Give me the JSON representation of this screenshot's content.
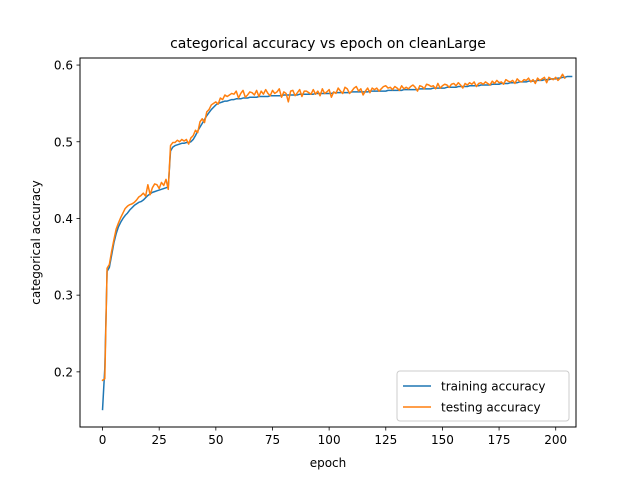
{
  "chart_data": {
    "type": "line",
    "title": "categorical accuracy vs epoch on cleanLarge",
    "xlabel": "epoch",
    "ylabel": "categorical accuracy",
    "xlim": [
      -9.95,
      208.95
    ],
    "ylim": [
      0.1281,
      0.6092
    ],
    "xticks": [
      0,
      25,
      50,
      75,
      100,
      125,
      150,
      175,
      200
    ],
    "yticks": [
      0.2,
      0.3,
      0.4,
      0.5,
      0.6
    ],
    "ytick_labels": [
      "0.2",
      "0.3",
      "0.4",
      "0.5",
      "0.6"
    ],
    "grid": false,
    "legend": "lower-right",
    "x_start": 0,
    "x_step": 1,
    "series": [
      {
        "name": "training accuracy",
        "color": "#1f77b4",
        "values": [
          0.151,
          0.205,
          0.331,
          0.336,
          0.352,
          0.368,
          0.38,
          0.389,
          0.395,
          0.4,
          0.404,
          0.407,
          0.411,
          0.414,
          0.417,
          0.419,
          0.421,
          0.422,
          0.424,
          0.427,
          0.43,
          0.432,
          0.434,
          0.435,
          0.436,
          0.437,
          0.438,
          0.439,
          0.44,
          0.441,
          0.488,
          0.493,
          0.495,
          0.496,
          0.497,
          0.498,
          0.498,
          0.499,
          0.499,
          0.5,
          0.503,
          0.508,
          0.514,
          0.519,
          0.524,
          0.529,
          0.534,
          0.538,
          0.542,
          0.545,
          0.548,
          0.55,
          0.551,
          0.552,
          0.553,
          0.553,
          0.554,
          0.555,
          0.555,
          0.556,
          0.556,
          0.556,
          0.557,
          0.557,
          0.557,
          0.558,
          0.558,
          0.558,
          0.558,
          0.559,
          0.559,
          0.559,
          0.559,
          0.559,
          0.56,
          0.56,
          0.56,
          0.56,
          0.56,
          0.56,
          0.561,
          0.561,
          0.561,
          0.561,
          0.561,
          0.561,
          0.561,
          0.562,
          0.562,
          0.562,
          0.562,
          0.562,
          0.562,
          0.562,
          0.563,
          0.563,
          0.563,
          0.563,
          0.563,
          0.563,
          0.563,
          0.563,
          0.564,
          0.564,
          0.564,
          0.564,
          0.564,
          0.564,
          0.564,
          0.564,
          0.565,
          0.565,
          0.565,
          0.565,
          0.565,
          0.565,
          0.565,
          0.565,
          0.566,
          0.566,
          0.566,
          0.566,
          0.566,
          0.566,
          0.566,
          0.566,
          0.567,
          0.567,
          0.567,
          0.567,
          0.567,
          0.567,
          0.567,
          0.568,
          0.568,
          0.568,
          0.568,
          0.568,
          0.568,
          0.568,
          0.569,
          0.569,
          0.569,
          0.569,
          0.569,
          0.569,
          0.57,
          0.57,
          0.57,
          0.57,
          0.57,
          0.57,
          0.571,
          0.571,
          0.571,
          0.571,
          0.571,
          0.572,
          0.572,
          0.572,
          0.572,
          0.572,
          0.573,
          0.573,
          0.573,
          0.573,
          0.573,
          0.574,
          0.574,
          0.574,
          0.574,
          0.574,
          0.575,
          0.575,
          0.575,
          0.575,
          0.576,
          0.576,
          0.576,
          0.576,
          0.577,
          0.577,
          0.577,
          0.577,
          0.578,
          0.578,
          0.578,
          0.578,
          0.579,
          0.579,
          0.579,
          0.579,
          0.58,
          0.58,
          0.58,
          0.581,
          0.581,
          0.581,
          0.582,
          0.582,
          0.582,
          0.583,
          0.583,
          0.584,
          0.584,
          0.585,
          0.585,
          0.585
        ]
      },
      {
        "name": "testing accuracy",
        "color": "#ff7f0e",
        "values": [
          0.189,
          0.191,
          0.335,
          0.34,
          0.357,
          0.372,
          0.386,
          0.394,
          0.401,
          0.407,
          0.413,
          0.416,
          0.418,
          0.419,
          0.421,
          0.424,
          0.428,
          0.43,
          0.433,
          0.429,
          0.444,
          0.431,
          0.44,
          0.445,
          0.444,
          0.439,
          0.447,
          0.443,
          0.451,
          0.438,
          0.495,
          0.499,
          0.499,
          0.502,
          0.5,
          0.503,
          0.501,
          0.503,
          0.497,
          0.505,
          0.508,
          0.515,
          0.512,
          0.526,
          0.53,
          0.525,
          0.539,
          0.542,
          0.548,
          0.55,
          0.552,
          0.549,
          0.557,
          0.555,
          0.561,
          0.559,
          0.561,
          0.563,
          0.562,
          0.566,
          0.557,
          0.563,
          0.567,
          0.558,
          0.561,
          0.565,
          0.564,
          0.561,
          0.567,
          0.559,
          0.566,
          0.562,
          0.568,
          0.563,
          0.56,
          0.567,
          0.563,
          0.565,
          0.569,
          0.558,
          0.565,
          0.563,
          0.552,
          0.566,
          0.567,
          0.56,
          0.564,
          0.568,
          0.559,
          0.566,
          0.566,
          0.564,
          0.562,
          0.568,
          0.562,
          0.566,
          0.56,
          0.569,
          0.563,
          0.565,
          0.568,
          0.558,
          0.565,
          0.563,
          0.57,
          0.566,
          0.563,
          0.571,
          0.569,
          0.563,
          0.566,
          0.57,
          0.572,
          0.566,
          0.569,
          0.561,
          0.566,
          0.57,
          0.564,
          0.57,
          0.568,
          0.57,
          0.566,
          0.569,
          0.572,
          0.573,
          0.57,
          0.571,
          0.568,
          0.572,
          0.57,
          0.567,
          0.573,
          0.569,
          0.571,
          0.569,
          0.572,
          0.574,
          0.571,
          0.566,
          0.573,
          0.572,
          0.569,
          0.575,
          0.574,
          0.572,
          0.573,
          0.569,
          0.576,
          0.57,
          0.573,
          0.575,
          0.574,
          0.571,
          0.575,
          0.576,
          0.573,
          0.577,
          0.574,
          0.57,
          0.576,
          0.574,
          0.577,
          0.575,
          0.578,
          0.572,
          0.576,
          0.577,
          0.575,
          0.578,
          0.576,
          0.574,
          0.579,
          0.576,
          0.58,
          0.577,
          0.578,
          0.575,
          0.581,
          0.579,
          0.578,
          0.58,
          0.576,
          0.582,
          0.579,
          0.578,
          0.581,
          0.58,
          0.583,
          0.578,
          0.581,
          0.576,
          0.583,
          0.58,
          0.582,
          0.584,
          0.577,
          0.584,
          0.582,
          0.581,
          0.584,
          0.58,
          0.583,
          0.588,
          0.583
        ]
      }
    ]
  }
}
